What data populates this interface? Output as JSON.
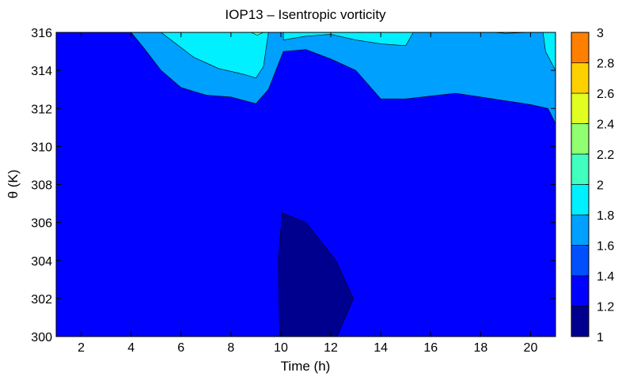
{
  "chart_data": {
    "type": "contour",
    "title": "IOP13 – Isentropic vorticity",
    "xlabel": "Time (h)",
    "ylabel": "θ (K)",
    "xlim": [
      1,
      21
    ],
    "ylim": [
      300,
      316
    ],
    "xticks": [
      2,
      4,
      6,
      8,
      10,
      12,
      14,
      16,
      18,
      20
    ],
    "yticks": [
      300,
      302,
      304,
      306,
      308,
      310,
      312,
      314,
      316
    ],
    "colorbar": {
      "levels": [
        1,
        1.2,
        1.4,
        1.6,
        1.8,
        2,
        2.2,
        2.4,
        2.6,
        2.8,
        3
      ],
      "tick_labels": [
        "1",
        "1.2",
        "1.4",
        "1.6",
        "1.8",
        "2",
        "2.2",
        "2.4",
        "2.6",
        "2.8",
        "3"
      ],
      "colors": [
        "#00008f",
        "#0000ff",
        "#0050ff",
        "#00a0ff",
        "#00f0ff",
        "#40ffbf",
        "#90ff70",
        "#e0ff20",
        "#ffd000",
        "#ff8000"
      ]
    },
    "background_level_color": "#0000ff",
    "regions": [
      {
        "name": "vorticity-1.0-1.2",
        "color": "#00008f",
        "points": [
          [
            9.95,
            300
          ],
          [
            9.9,
            304
          ],
          [
            10.05,
            306.5
          ],
          [
            11,
            306
          ],
          [
            12.2,
            304
          ],
          [
            12.9,
            302
          ],
          [
            12.25,
            300
          ]
        ]
      },
      {
        "name": "vorticity-1.6-1.8",
        "color": "#00a0ff",
        "points": [
          [
            4,
            316
          ],
          [
            4.5,
            315.2
          ],
          [
            5.2,
            314
          ],
          [
            6,
            313.1
          ],
          [
            7,
            312.7
          ],
          [
            8,
            312.6
          ],
          [
            9,
            312.25
          ],
          [
            9.5,
            313
          ],
          [
            9.8,
            314
          ],
          [
            10.1,
            315
          ],
          [
            11,
            315.1
          ],
          [
            12,
            314.6
          ],
          [
            13,
            314
          ],
          [
            14,
            312.5
          ],
          [
            15,
            312.5
          ],
          [
            16,
            312.65
          ],
          [
            17,
            312.8
          ],
          [
            18,
            312.6
          ],
          [
            19,
            312.4
          ],
          [
            20,
            312.2
          ],
          [
            20.7,
            312
          ],
          [
            21,
            311.2
          ],
          [
            21,
            316
          ]
        ]
      },
      {
        "name": "vorticity-1.8-2.0",
        "color": "#00f0ff",
        "points": [
          [
            5.2,
            316
          ],
          [
            5.8,
            315.4
          ],
          [
            6.5,
            314.7
          ],
          [
            7.5,
            314.1
          ],
          [
            8.5,
            313.8
          ],
          [
            9,
            313.6
          ],
          [
            9.3,
            314.2
          ],
          [
            9.5,
            316
          ]
        ]
      },
      {
        "name": "vorticity-1.8-2.0",
        "color": "#00f0ff",
        "points": [
          [
            10.1,
            316
          ],
          [
            10.1,
            315.6
          ],
          [
            11,
            315.8
          ],
          [
            12,
            315.9
          ],
          [
            13,
            315.6
          ],
          [
            14,
            315.4
          ],
          [
            15,
            315.3
          ],
          [
            15.3,
            316
          ]
        ]
      },
      {
        "name": "vorticity-1.8-2.0",
        "color": "#00f0ff",
        "points": [
          [
            18.5,
            316
          ],
          [
            19,
            315.95
          ],
          [
            20,
            316
          ]
        ]
      },
      {
        "name": "vorticity-1.8-2.0",
        "color": "#00f0ff",
        "points": [
          [
            20.5,
            316
          ],
          [
            20.6,
            315
          ],
          [
            21,
            314
          ],
          [
            21,
            316
          ]
        ]
      },
      {
        "name": "vorticity-2.0-2.2",
        "color": "#40ffbf",
        "points": [
          [
            8.8,
            316
          ],
          [
            9.05,
            315.85
          ],
          [
            9.3,
            316
          ]
        ]
      }
    ]
  }
}
